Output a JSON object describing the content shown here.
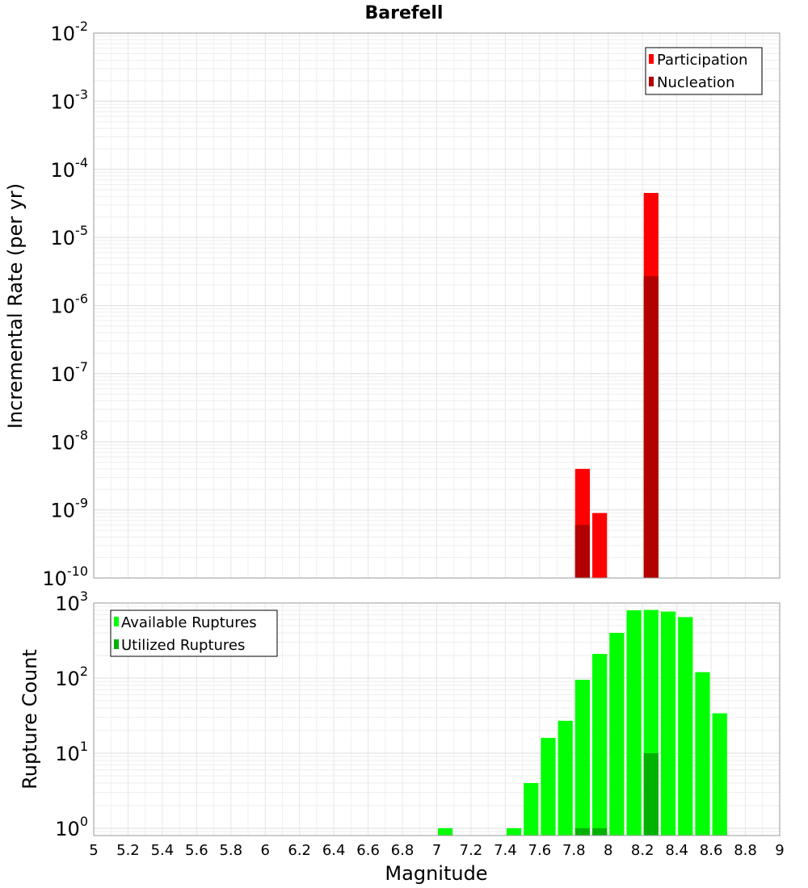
{
  "chart_data": [
    {
      "type": "bar",
      "title": "Barefell",
      "xlabel": "",
      "ylabel": "Incremental Rate (per yr)",
      "yscale": "log",
      "ylim": [
        1e-10,
        0.01
      ],
      "xlim": [
        5,
        9
      ],
      "bar_width": 0.1,
      "grid": true,
      "legend_position": "top-right",
      "y_ticks": [
        {
          "base": "10",
          "exp": "-10",
          "value": 1e-10
        },
        {
          "base": "10",
          "exp": "-9",
          "value": 1e-09
        },
        {
          "base": "10",
          "exp": "-8",
          "value": 1e-08
        },
        {
          "base": "10",
          "exp": "-7",
          "value": 1e-07
        },
        {
          "base": "10",
          "exp": "-6",
          "value": 1e-06
        },
        {
          "base": "10",
          "exp": "-5",
          "value": 1e-05
        },
        {
          "base": "10",
          "exp": "-4",
          "value": 0.0001
        },
        {
          "base": "10",
          "exp": "-3",
          "value": 0.001
        },
        {
          "base": "10",
          "exp": "-2",
          "value": 0.01
        }
      ],
      "series": [
        {
          "name": "Participation",
          "color": "#ff0000",
          "x": [
            7.85,
            7.95,
            8.25
          ],
          "values": [
            4e-09,
            9e-10,
            4.5e-05
          ]
        },
        {
          "name": "Nucleation",
          "color": "#b20000",
          "x": [
            7.85,
            8.25
          ],
          "values": [
            6e-10,
            2.7e-06
          ]
        }
      ]
    },
    {
      "type": "bar",
      "title": "",
      "xlabel": "Magnitude",
      "ylabel": "Rupture Count",
      "yscale": "log",
      "ylim": [
        0.8,
        1000
      ],
      "xlim": [
        5,
        9
      ],
      "bar_width": 0.1,
      "grid": true,
      "legend_position": "top-left",
      "x_ticks": [
        "5",
        "5.2",
        "5.4",
        "5.6",
        "5.8",
        "6",
        "6.2",
        "6.4",
        "6.6",
        "6.8",
        "7",
        "7.2",
        "7.4",
        "7.6",
        "7.8",
        "8",
        "8.2",
        "8.4",
        "8.6",
        "8.8",
        "9"
      ],
      "y_ticks": [
        {
          "base": "10",
          "exp": "0",
          "value": 1
        },
        {
          "base": "10",
          "exp": "1",
          "value": 10
        },
        {
          "base": "10",
          "exp": "2",
          "value": 100
        },
        {
          "base": "10",
          "exp": "3",
          "value": 1000
        }
      ],
      "series": [
        {
          "name": "Available Ruptures",
          "color": "#00ff00",
          "x": [
            7.05,
            7.45,
            7.55,
            7.65,
            7.75,
            7.85,
            7.95,
            8.05,
            8.15,
            8.25,
            8.35,
            8.45,
            8.55,
            8.65
          ],
          "values": [
            1,
            1,
            4,
            16,
            27,
            95,
            210,
            400,
            800,
            810,
            770,
            650,
            120,
            34
          ]
        },
        {
          "name": "Utilized Ruptures",
          "color": "#00b200",
          "x": [
            7.85,
            7.95,
            8.25
          ],
          "values": [
            1,
            1,
            10
          ]
        }
      ]
    }
  ]
}
